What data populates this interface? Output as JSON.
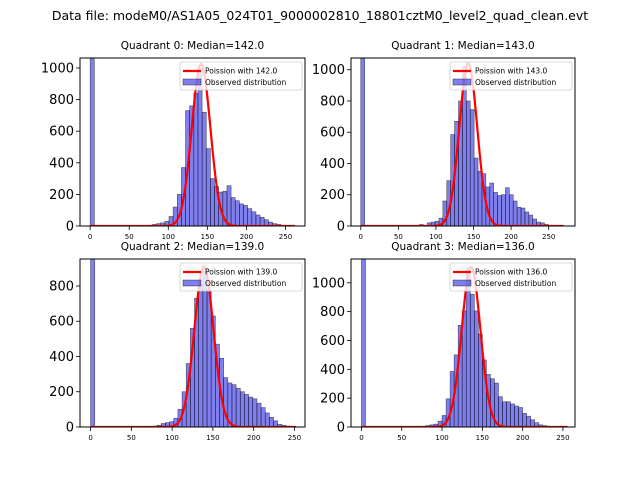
{
  "chart_data": {
    "type": "bar",
    "suptitle": "Data file: modeM0/AS1A05_024T01_9000002810_18801cztM0_level2_quad_clean.evt",
    "bar_color": "#0000dd",
    "bar_alpha": 0.5,
    "bar_edge_color": "#000000",
    "line_color": "#ff0000",
    "legend_placement": "upper right",
    "panels": [
      {
        "title": "Quadrant 0: Median=142.0",
        "median": 142.0,
        "legend": [
          "Poission with 142.0",
          "Observed distribution"
        ],
        "xlim": [
          -13,
          275
        ],
        "ylim": [
          0,
          1063
        ],
        "xticks": [
          0,
          50,
          100,
          150,
          200,
          250
        ],
        "yticks": [
          0,
          200,
          400,
          600,
          800,
          1000
        ],
        "bin_width": 5.3,
        "bins_start": [
          0,
          74.4,
          79.7,
          85,
          90.3,
          95.6,
          100.9,
          106.2,
          111.5,
          116.8,
          122.1,
          127.4,
          132.7,
          138,
          143.3,
          148.6,
          153.9,
          159.2,
          164.5,
          169.8,
          175.1,
          180.4,
          185.7,
          191,
          196.3,
          201.6,
          206.9,
          212.2,
          217.5,
          222.8,
          228.1,
          233.4,
          238.7,
          244,
          249.3,
          254.6
        ],
        "counts": [
          1063,
          5,
          10,
          15,
          20,
          30,
          60,
          120,
          200,
          370,
          730,
          760,
          840,
          1000,
          720,
          490,
          300,
          250,
          215,
          220,
          255,
          180,
          160,
          140,
          130,
          110,
          90,
          70,
          55,
          40,
          25,
          15,
          10,
          5,
          3,
          2
        ],
        "poisson_peak": 1025,
        "poisson_xrange": [
          0,
          262
        ]
      },
      {
        "title": "Quadrant 1: Median=143.0",
        "median": 143.0,
        "legend": [
          "Poission with 143.0",
          "Observed distribution"
        ],
        "xlim": [
          -13,
          285
        ],
        "ylim": [
          0,
          1075
        ],
        "xticks": [
          0,
          50,
          100,
          150,
          200,
          250
        ],
        "yticks": [
          0,
          200,
          400,
          600,
          800,
          1000
        ],
        "bin_width": 5.2,
        "bins_start": [
          0,
          78,
          83.2,
          88.4,
          93.6,
          98.8,
          104,
          109.2,
          114.4,
          119.6,
          124.8,
          130,
          135.2,
          140.4,
          145.6,
          150.8,
          156,
          161.2,
          166.4,
          171.6,
          176.8,
          182,
          187.2,
          192.4,
          197.6,
          202.8,
          208,
          213.2,
          218.4,
          223.6,
          228.8,
          234,
          239.2,
          244.4,
          249.6,
          254.8,
          260
        ],
        "counts": [
          1075,
          10,
          5,
          20,
          25,
          30,
          50,
          160,
          290,
          585,
          670,
          800,
          1020,
          800,
          745,
          435,
          350,
          335,
          250,
          275,
          215,
          195,
          200,
          245,
          200,
          160,
          120,
          115,
          90,
          70,
          45,
          25,
          20,
          10,
          5,
          3,
          2
        ],
        "poisson_peak": 1040,
        "poisson_xrange": [
          0,
          270
        ]
      },
      {
        "title": "Quadrant 2: Median=139.0",
        "median": 139.0,
        "legend": [
          "Poission with 139.0",
          "Observed distribution"
        ],
        "xlim": [
          -13,
          263
        ],
        "ylim": [
          0,
          953
        ],
        "xticks": [
          0,
          50,
          100,
          150,
          200,
          250
        ],
        "yticks": [
          0,
          200,
          400,
          600,
          800
        ],
        "bin_width": 5.1,
        "bins_start": [
          0,
          76.5,
          81.6,
          86.7,
          91.8,
          96.9,
          102,
          107.1,
          112.2,
          117.3,
          122.4,
          127.5,
          132.6,
          137.7,
          142.8,
          147.9,
          153,
          158.1,
          163.2,
          168.3,
          173.4,
          178.5,
          183.6,
          188.7,
          193.8,
          198.9,
          204,
          209.1,
          214.2,
          219.3,
          224.4,
          229.5,
          234.6,
          239.7
        ],
        "counts": [
          953,
          5,
          10,
          20,
          25,
          30,
          50,
          100,
          200,
          360,
          560,
          730,
          810,
          900,
          780,
          630,
          470,
          390,
          280,
          250,
          240,
          220,
          200,
          185,
          170,
          160,
          135,
          110,
          80,
          55,
          35,
          15,
          10,
          5
        ],
        "poisson_peak": 910,
        "poisson_xrange": [
          0,
          252
        ]
      },
      {
        "title": "Quadrant 3: Median=136.0",
        "median": 136.0,
        "legend": [
          "Poission with 136.0",
          "Observed distribution"
        ],
        "xlim": [
          -13,
          265
        ],
        "ylim": [
          0,
          1165
        ],
        "xticks": [
          0,
          50,
          100,
          150,
          200,
          250
        ],
        "yticks": [
          0,
          200,
          400,
          600,
          800,
          1000
        ],
        "bin_width": 5.0,
        "bins_start": [
          0,
          75,
          80,
          85,
          90,
          95,
          100,
          105,
          110,
          115,
          120,
          125,
          130,
          135,
          140,
          145,
          150,
          155,
          160,
          165,
          170,
          175,
          180,
          185,
          190,
          195,
          200,
          205,
          210,
          215,
          220,
          225,
          230,
          235,
          240
        ],
        "counts": [
          1165,
          5,
          10,
          15,
          20,
          40,
          80,
          195,
          385,
          500,
          705,
          805,
          1100,
          920,
          805,
          645,
          465,
          365,
          335,
          305,
          210,
          175,
          175,
          160,
          145,
          135,
          95,
          75,
          50,
          30,
          15,
          10,
          5,
          3,
          2
        ],
        "poisson_peak": 1110,
        "poisson_xrange": [
          0,
          256
        ]
      }
    ]
  }
}
